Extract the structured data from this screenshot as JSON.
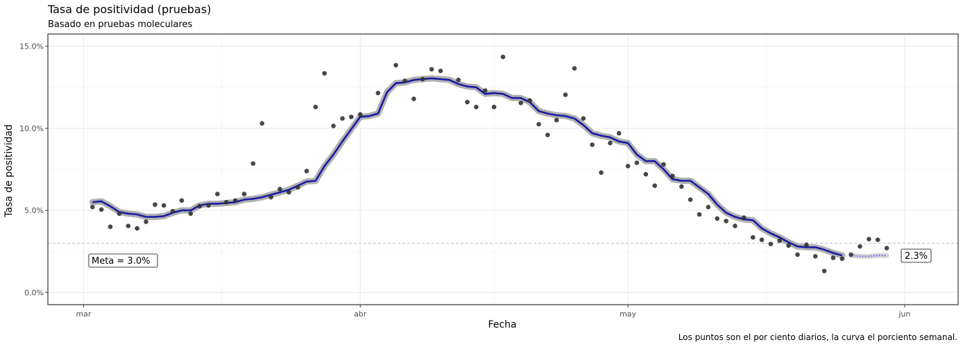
{
  "chart_data": {
    "type": "scatter",
    "title": "Tasa de positividad (pruebas)",
    "subtitle": "Basado en pruebas moleculares",
    "xlabel": "Fecha",
    "ylabel": "Tasa de positividad",
    "caption": "Los puntos son el por ciento diarios, la curva el porciento semanal.",
    "x_ticks": [
      {
        "date": "2021-03-01",
        "label": "mar"
      },
      {
        "date": "2021-04-01",
        "label": "abr"
      },
      {
        "date": "2021-05-01",
        "label": "may"
      },
      {
        "date": "2021-06-01",
        "label": "jun"
      }
    ],
    "xlim": [
      "2021-02-25",
      "2021-06-07"
    ],
    "y_ticks": [
      0,
      5,
      10,
      15
    ],
    "y_tick_labels": [
      "0.0%",
      "5.0%",
      "10.0%",
      "15.0%"
    ],
    "ylim": [
      -0.75,
      15.75
    ],
    "grid": true,
    "goal": {
      "value": 3.0,
      "label": "Meta = 3.0%"
    },
    "last_label": "2.3%",
    "colors": {
      "line": "#1a1aa6",
      "band": "#b0b0b0",
      "points": "#333333",
      "goal_line": "#bfbfbf",
      "partial_line": "#8080e6"
    },
    "series": [
      {
        "name": "diario",
        "kind": "points",
        "start_date": "2021-03-02",
        "values": [
          5.2,
          5.05,
          4.0,
          4.8,
          4.05,
          3.9,
          4.3,
          5.35,
          5.3,
          4.95,
          5.6,
          4.8,
          5.25,
          5.3,
          6.0,
          5.5,
          5.6,
          6.0,
          7.85,
          10.3,
          5.8,
          6.3,
          6.1,
          6.4,
          7.4,
          11.3,
          13.35,
          10.15,
          10.6,
          10.7,
          10.85,
          null,
          12.15,
          null,
          13.85,
          12.9,
          11.8,
          13.0,
          13.6,
          13.5,
          null,
          12.95,
          11.6,
          11.3,
          12.3,
          11.3,
          14.35,
          null,
          11.55,
          11.7,
          10.25,
          9.6,
          10.5,
          12.05,
          13.65,
          10.6,
          9.0,
          7.3,
          9.1,
          9.7,
          7.7,
          7.9,
          7.2,
          6.5,
          7.8,
          7.1,
          6.45,
          5.65,
          4.75,
          5.2,
          4.5,
          4.35,
          4.05,
          4.55,
          3.35,
          3.2,
          2.95,
          3.15,
          2.85,
          2.3,
          2.9,
          2.2,
          1.3,
          2.1,
          2.05,
          2.3,
          2.8,
          3.25,
          3.2,
          2.7
        ]
      },
      {
        "name": "semanal",
        "kind": "line",
        "start_date": "2021-03-02",
        "values": [
          5.5,
          5.55,
          5.25,
          4.9,
          4.8,
          4.75,
          4.6,
          4.6,
          4.65,
          4.85,
          5.0,
          5.0,
          5.3,
          5.4,
          5.4,
          5.45,
          5.5,
          5.65,
          5.7,
          5.8,
          5.95,
          6.1,
          6.25,
          6.5,
          6.75,
          6.8,
          7.7,
          8.4,
          9.2,
          9.95,
          10.7,
          10.75,
          10.9,
          12.2,
          12.75,
          12.8,
          12.95,
          13.0,
          13.05,
          13.0,
          12.95,
          12.7,
          12.55,
          12.5,
          12.1,
          12.15,
          12.1,
          11.85,
          11.85,
          11.6,
          11.05,
          10.9,
          10.8,
          10.75,
          10.6,
          10.2,
          9.7,
          9.55,
          9.45,
          9.2,
          9.1,
          8.4,
          8.0,
          8.0,
          7.5,
          6.9,
          6.8,
          6.8,
          6.4,
          6.0,
          5.35,
          4.85,
          4.6,
          4.45,
          4.4,
          3.9,
          3.6,
          3.35,
          3.05,
          2.8,
          2.75,
          2.75,
          2.6,
          2.4,
          2.25
        ]
      },
      {
        "name": "semanal-parcial",
        "kind": "line",
        "start_date": "2021-05-26",
        "values": [
          2.25,
          2.2,
          2.2,
          2.25,
          2.25
        ]
      }
    ]
  }
}
